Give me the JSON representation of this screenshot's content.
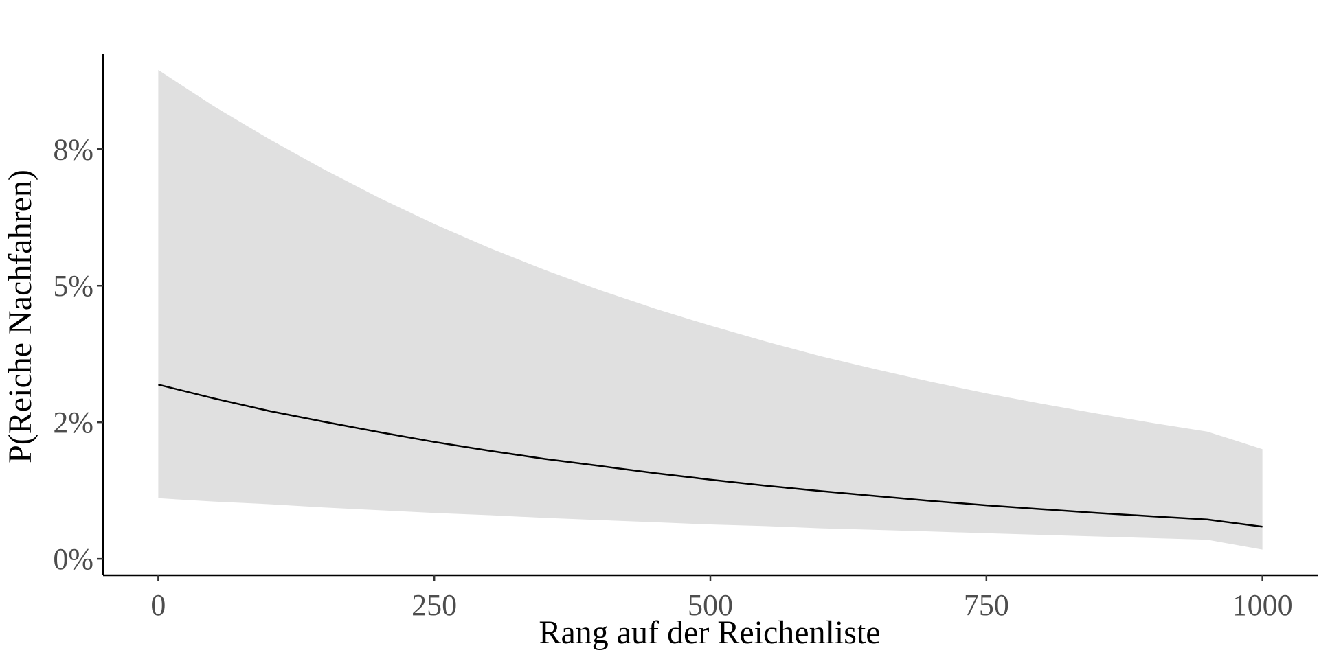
{
  "chart_data": {
    "type": "line",
    "title": "",
    "xlabel": "Rang auf der Reichenliste",
    "ylabel": "P(Reiche Nachfahren)",
    "xlim": [
      -50,
      1050
    ],
    "ylim": [
      -0.003,
      0.0925
    ],
    "x_ticks": [
      {
        "value": 0,
        "label": "0"
      },
      {
        "value": 250,
        "label": "250"
      },
      {
        "value": 500,
        "label": "500"
      },
      {
        "value": 750,
        "label": "750"
      },
      {
        "value": 1000,
        "label": "1000"
      }
    ],
    "y_ticks": [
      {
        "value": 0,
        "label": "0%"
      },
      {
        "value": 0.025,
        "label": "2%"
      },
      {
        "value": 0.05,
        "label": "5%"
      },
      {
        "value": 0.075,
        "label": "8%"
      }
    ],
    "grid": false,
    "legend": "none",
    "colors": {
      "line": "#000000",
      "ribbon": "#e0e0e0",
      "axis": "#000000",
      "tick_label": "#4d4d4d"
    },
    "series": [
      {
        "x": [
          0,
          50,
          100,
          150,
          200,
          250,
          300,
          350,
          400,
          450,
          500,
          550,
          600,
          650,
          700,
          750,
          800,
          850,
          900,
          950,
          1000
        ],
        "y": [
          0.0319,
          0.0294,
          0.0271,
          0.0251,
          0.0232,
          0.0214,
          0.0198,
          0.0183,
          0.017,
          0.0157,
          0.0145,
          0.0134,
          0.0124,
          0.0115,
          0.0106,
          0.0098,
          0.0091,
          0.0084,
          0.0078,
          0.0072,
          0.0059
        ],
        "lower": [
          0.0111,
          0.0105,
          0.01,
          0.0094,
          0.0089,
          0.0084,
          0.008,
          0.0075,
          0.0071,
          0.0067,
          0.0063,
          0.006,
          0.0056,
          0.0053,
          0.005,
          0.0047,
          0.0044,
          0.0041,
          0.0038,
          0.0035,
          0.0017
        ],
        "upper": [
          0.0895,
          0.0829,
          0.0769,
          0.0713,
          0.0661,
          0.0613,
          0.0569,
          0.0529,
          0.0492,
          0.0458,
          0.0427,
          0.0398,
          0.0371,
          0.0347,
          0.0324,
          0.0303,
          0.0284,
          0.0266,
          0.0249,
          0.0233,
          0.0201
        ]
      }
    ]
  }
}
